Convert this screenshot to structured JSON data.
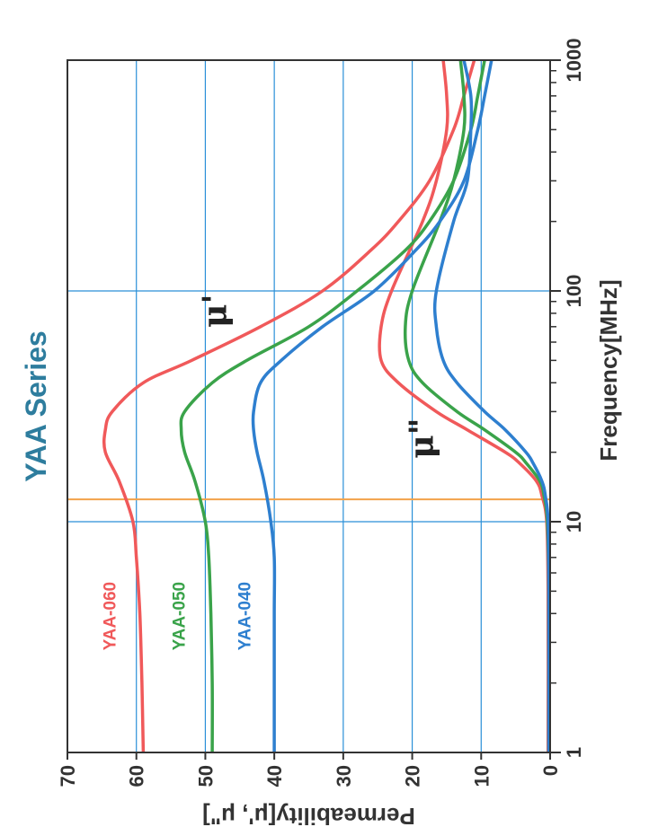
{
  "chart_data": {
    "type": "line",
    "title": "YAA Series",
    "xlabel": "Frequency[MHz]",
    "ylabel": "Permeability[μ', μ\"]",
    "x_scale": "log",
    "xlim": [
      1,
      1000
    ],
    "ylim": [
      0,
      70
    ],
    "x_ticks": [
      "1",
      "10",
      "100",
      "1000"
    ],
    "y_ticks": [
      "0",
      "10",
      "20",
      "30",
      "40",
      "50",
      "60",
      "70"
    ],
    "grid": true,
    "reference_frequency_mhz": 12.5,
    "curve_labels": {
      "mu_prime": "μ'",
      "mu_double_prime": "μ\""
    },
    "colors": {
      "title": "#2e7d9e",
      "grid": "#2a8fd8",
      "reference_line": "#f2a24a",
      "axis": "#333333"
    },
    "series": [
      {
        "name": "YAA-060",
        "color": "#f0595a",
        "mu_prime": {
          "x": [
            1,
            2,
            4,
            7,
            10,
            15,
            20,
            25,
            30,
            40,
            50,
            70,
            100,
            150,
            200,
            300,
            500,
            700,
            1000
          ],
          "values": [
            59,
            59.2,
            59.5,
            60,
            60.5,
            62.5,
            64.5,
            64.5,
            63.5,
            59,
            52,
            42,
            33,
            26,
            22,
            17.5,
            14,
            12.5,
            11
          ]
        },
        "mu_double_prime": {
          "x": [
            1,
            5,
            10,
            13,
            15,
            18,
            20,
            25,
            30,
            40,
            50,
            70,
            100,
            200,
            300,
            500,
            700,
            1000
          ],
          "values": [
            0.3,
            0.3,
            0.5,
            1.2,
            2,
            4.5,
            6.5,
            12,
            16.5,
            22,
            24.5,
            24.5,
            23,
            18.5,
            16.5,
            15,
            15,
            15.5
          ]
        }
      },
      {
        "name": "YAA-050",
        "color": "#3aa34a",
        "mu_prime": {
          "x": [
            1,
            2,
            4,
            7,
            10,
            15,
            20,
            25,
            30,
            40,
            50,
            70,
            100,
            150,
            200,
            300,
            500,
            700,
            1000
          ],
          "values": [
            49,
            49,
            49.2,
            49.5,
            50,
            51.5,
            53,
            53.5,
            53,
            49,
            44,
            35,
            28,
            21,
            17.5,
            14,
            11.5,
            10.5,
            9.5
          ]
        },
        "mu_double_prime": {
          "x": [
            1,
            5,
            10,
            13,
            15,
            18,
            20,
            25,
            30,
            40,
            50,
            70,
            100,
            200,
            300,
            500,
            700,
            1000
          ],
          "values": [
            0.2,
            0.2,
            0.4,
            0.9,
            1.5,
            3.5,
            5,
            9.5,
            13.5,
            18.5,
            20.5,
            21,
            20,
            16,
            14,
            12.5,
            12.5,
            13
          ]
        }
      },
      {
        "name": "YAA-040",
        "color": "#2e7fcf",
        "mu_prime": {
          "x": [
            1,
            2,
            4,
            7,
            10,
            15,
            20,
            25,
            30,
            40,
            50,
            70,
            100,
            150,
            200,
            300,
            500,
            700,
            1000
          ],
          "values": [
            40,
            40,
            40,
            40,
            40.5,
            41.5,
            42.5,
            43,
            43,
            42,
            39,
            33,
            25.5,
            19.5,
            16,
            12.5,
            10.5,
            9.5,
            8.5
          ]
        },
        "mu_double_prime": {
          "x": [
            1,
            5,
            10,
            13,
            15,
            18,
            20,
            25,
            30,
            40,
            50,
            70,
            100,
            200,
            300,
            500,
            700,
            1000
          ],
          "values": [
            0.2,
            0.2,
            0.3,
            0.7,
            1.2,
            2.5,
            3.5,
            6.5,
            9.5,
            13.5,
            15.5,
            16.5,
            16.5,
            14,
            12,
            11.5,
            11.5,
            12.5
          ]
        }
      }
    ]
  }
}
